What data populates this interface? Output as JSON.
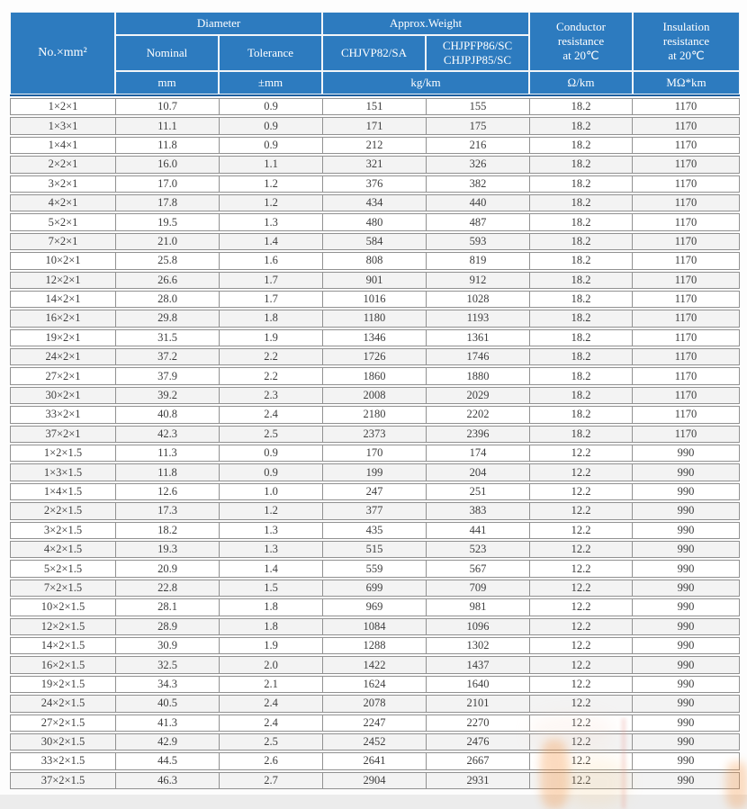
{
  "theme": {
    "header_bg": "#2d7bbf",
    "header_text": "#ffffff",
    "header_bottom_line": "#1e5f9e",
    "grid_border": "#919191",
    "row_bg": "#ffffff",
    "row_alt_bg": "#f3f3f3",
    "data_text": "#3d3d3d",
    "bottom_band": "#ececec",
    "watermark_orange": "#f5923e"
  },
  "table": {
    "col1_header": "No.×mm²",
    "groups": {
      "diameter": "Diameter",
      "weight": "Approx.Weight"
    },
    "subheaders": {
      "nominal": "Nominal",
      "tolerance": "Tolerance",
      "weight_model_1": "CHJVP82/SA",
      "weight_model_2": "CHJPFP86/SC\nCHJPJP85/SC"
    },
    "resistance_headers": {
      "conductor": "Conductor\nresistance\nat 20℃",
      "insulation": "Insulation\nresistance\nat 20℃"
    },
    "units": {
      "nominal": "mm",
      "tolerance": "±mm",
      "weight": "kg/km",
      "conductor": "Ω/km",
      "insulation": "MΩ*km"
    },
    "rows": [
      [
        "1×2×1",
        "10.7",
        "0.9",
        "151",
        "155",
        "18.2",
        "1170"
      ],
      [
        "1×3×1",
        "11.1",
        "0.9",
        "171",
        "175",
        "18.2",
        "1170"
      ],
      [
        "1×4×1",
        "11.8",
        "0.9",
        "212",
        "216",
        "18.2",
        "1170"
      ],
      [
        "2×2×1",
        "16.0",
        "1.1",
        "321",
        "326",
        "18.2",
        "1170"
      ],
      [
        "3×2×1",
        "17.0",
        "1.2",
        "376",
        "382",
        "18.2",
        "1170"
      ],
      [
        "4×2×1",
        "17.8",
        "1.2",
        "434",
        "440",
        "18.2",
        "1170"
      ],
      [
        "5×2×1",
        "19.5",
        "1.3",
        "480",
        "487",
        "18.2",
        "1170"
      ],
      [
        "7×2×1",
        "21.0",
        "1.4",
        "584",
        "593",
        "18.2",
        "1170"
      ],
      [
        "10×2×1",
        "25.8",
        "1.6",
        "808",
        "819",
        "18.2",
        "1170"
      ],
      [
        "12×2×1",
        "26.6",
        "1.7",
        "901",
        "912",
        "18.2",
        "1170"
      ],
      [
        "14×2×1",
        "28.0",
        "1.7",
        "1016",
        "1028",
        "18.2",
        "1170"
      ],
      [
        "16×2×1",
        "29.8",
        "1.8",
        "1180",
        "1193",
        "18.2",
        "1170"
      ],
      [
        "19×2×1",
        "31.5",
        "1.9",
        "1346",
        "1361",
        "18.2",
        "1170"
      ],
      [
        "24×2×1",
        "37.2",
        "2.2",
        "1726",
        "1746",
        "18.2",
        "1170"
      ],
      [
        "27×2×1",
        "37.9",
        "2.2",
        "1860",
        "1880",
        "18.2",
        "1170"
      ],
      [
        "30×2×1",
        "39.2",
        "2.3",
        "2008",
        "2029",
        "18.2",
        "1170"
      ],
      [
        "33×2×1",
        "40.8",
        "2.4",
        "2180",
        "2202",
        "18.2",
        "1170"
      ],
      [
        "37×2×1",
        "42.3",
        "2.5",
        "2373",
        "2396",
        "18.2",
        "1170"
      ],
      [
        "1×2×1.5",
        "11.3",
        "0.9",
        "170",
        "174",
        "12.2",
        "990"
      ],
      [
        "1×3×1.5",
        "11.8",
        "0.9",
        "199",
        "204",
        "12.2",
        "990"
      ],
      [
        "1×4×1.5",
        "12.6",
        "1.0",
        "247",
        "251",
        "12.2",
        "990"
      ],
      [
        "2×2×1.5",
        "17.3",
        "1.2",
        "377",
        "383",
        "12.2",
        "990"
      ],
      [
        "3×2×1.5",
        "18.2",
        "1.3",
        "435",
        "441",
        "12.2",
        "990"
      ],
      [
        "4×2×1.5",
        "19.3",
        "1.3",
        "515",
        "523",
        "12.2",
        "990"
      ],
      [
        "5×2×1.5",
        "20.9",
        "1.4",
        "559",
        "567",
        "12.2",
        "990"
      ],
      [
        "7×2×1.5",
        "22.8",
        "1.5",
        "699",
        "709",
        "12.2",
        "990"
      ],
      [
        "10×2×1.5",
        "28.1",
        "1.8",
        "969",
        "981",
        "12.2",
        "990"
      ],
      [
        "12×2×1.5",
        "28.9",
        "1.8",
        "1084",
        "1096",
        "12.2",
        "990"
      ],
      [
        "14×2×1.5",
        "30.9",
        "1.9",
        "1288",
        "1302",
        "12.2",
        "990"
      ],
      [
        "16×2×1.5",
        "32.5",
        "2.0",
        "1422",
        "1437",
        "12.2",
        "990"
      ],
      [
        "19×2×1.5",
        "34.3",
        "2.1",
        "1624",
        "1640",
        "12.2",
        "990"
      ],
      [
        "24×2×1.5",
        "40.5",
        "2.4",
        "2078",
        "2101",
        "12.2",
        "990"
      ],
      [
        "27×2×1.5",
        "41.3",
        "2.4",
        "2247",
        "2270",
        "12.2",
        "990"
      ],
      [
        "30×2×1.5",
        "42.9",
        "2.5",
        "2452",
        "2476",
        "12.2",
        "990"
      ],
      [
        "33×2×1.5",
        "44.5",
        "2.6",
        "2641",
        "2667",
        "12.2",
        "990"
      ],
      [
        "37×2×1.5",
        "46.3",
        "2.7",
        "2904",
        "2931",
        "12.2",
        "990"
      ]
    ]
  }
}
